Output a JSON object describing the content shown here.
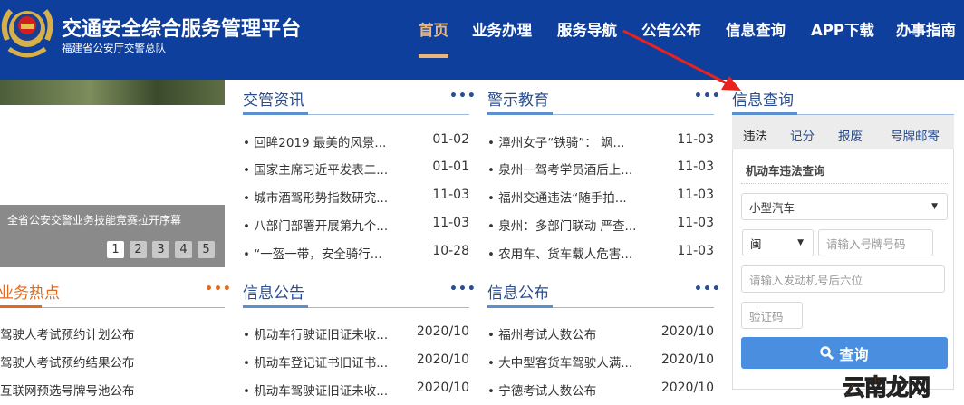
{
  "header": {
    "title": "交通安全综合服务管理平台",
    "subtitle": "福建省公安厅交警总队",
    "nav": [
      "首页",
      "业务办理",
      "服务导航",
      "公告公布",
      "信息查询",
      "APP下载",
      "办事指南"
    ],
    "active": "首页"
  },
  "banner": {
    "caption": "全省公安交警业务技能竞赛拉开序幕",
    "pages": [
      "1",
      "2",
      "3",
      "4",
      "5"
    ],
    "current_page": 1
  },
  "hot": {
    "title": "业务热点",
    "more": "•••",
    "items": [
      "驾驶人考试预约计划公布",
      "驾驶人考试预约结果公布",
      "互联网预选号牌号池公布"
    ]
  },
  "news": {
    "title": "交管资讯",
    "more": "•••",
    "items": [
      {
        "text": "• 回眸2019 最美的风景...",
        "date": "01-02"
      },
      {
        "text": "• 国家主席习近平发表二...",
        "date": "01-01"
      },
      {
        "text": "• 城市酒驾形势指数研究...",
        "date": "11-03"
      },
      {
        "text": "• 八部门部署开展第九个...",
        "date": "11-03"
      },
      {
        "text": "• “一盔一带，安全骑行...",
        "date": "10-28"
      }
    ]
  },
  "warning": {
    "title": "警示教育",
    "more": "•••",
    "items": [
      {
        "text": "• 漳州女子“铁骑”： 飒...",
        "date": "11-03"
      },
      {
        "text": "• 泉州一驾考学员酒后上...",
        "date": "11-03"
      },
      {
        "text": "• 福州交通违法“随手拍...",
        "date": "11-03"
      },
      {
        "text": "• 泉州：多部门联动 严查...",
        "date": "11-03"
      },
      {
        "text": "• 农用车、货车载人危害...",
        "date": "11-03"
      }
    ]
  },
  "notice": {
    "title": "信息公告",
    "more": "•••",
    "items": [
      {
        "text": "• 机动车行驶证旧证未收...",
        "date": "2020/10"
      },
      {
        "text": "• 机动车登记证书旧证书...",
        "date": "2020/10"
      },
      {
        "text": "• 机动车驾驶证旧证未收...",
        "date": "2020/10"
      }
    ]
  },
  "publish": {
    "title": "信息公布",
    "more": "•••",
    "items": [
      {
        "text": "• 福州考试人数公布",
        "date": "2020/10"
      },
      {
        "text": "• 大中型客货车驾驶人满...",
        "date": "2020/10"
      },
      {
        "text": "• 宁德考试人数公布",
        "date": "2020/10"
      }
    ]
  },
  "query": {
    "title": "信息查询",
    "tabs": [
      "违法",
      "记分",
      "报废",
      "号牌邮寄"
    ],
    "active_tab": "违法",
    "subtitle": "机动车违法查询",
    "vehicle_type": "小型汽车",
    "province": "闽",
    "plate_placeholder": "请输入号牌号码",
    "engine_placeholder": "请输入发动机号后六位",
    "captcha_placeholder": "验证码",
    "submit": "查询"
  },
  "watermark": {
    "a": "云南",
    "b": "龙网"
  },
  "colors": {
    "header": "#0f3f9c",
    "accent": "#e9b57e",
    "orange": "#e06a1f",
    "button": "#4a8fdf",
    "arrow": "#e8231f"
  }
}
